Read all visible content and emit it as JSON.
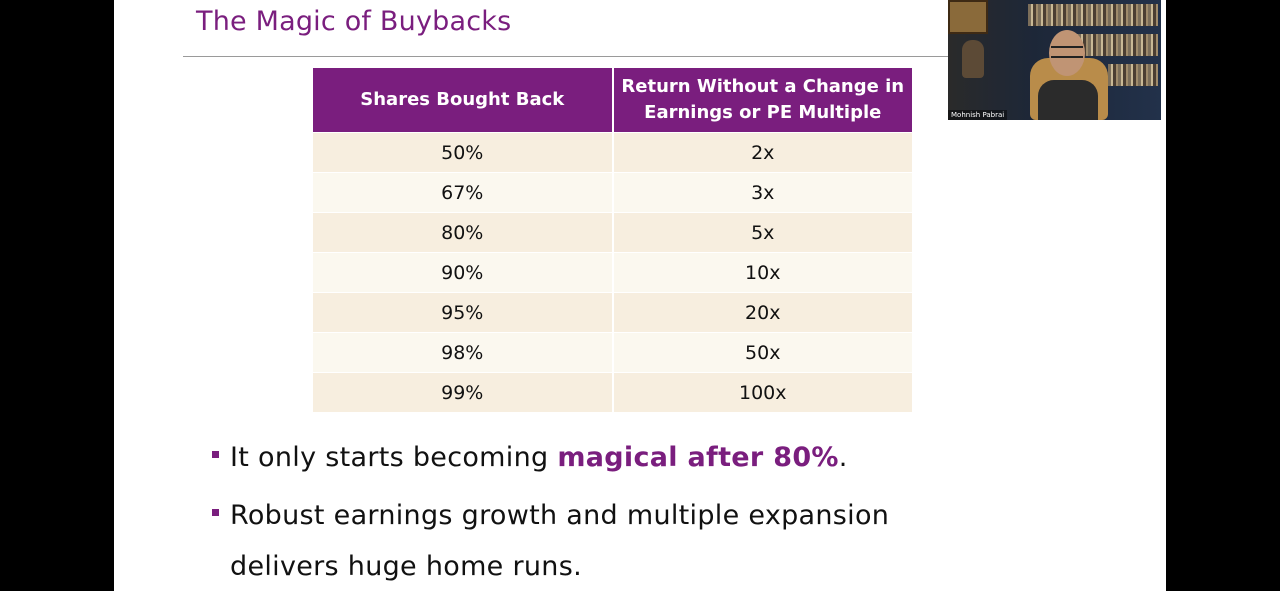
{
  "slide": {
    "title": "The Magic of Buybacks",
    "accent_color": "#7a1e7e"
  },
  "table": {
    "headers": [
      "Shares Bought Back",
      "Return Without a Change in Earnings or PE Multiple"
    ],
    "rows": [
      [
        "50%",
        "2x"
      ],
      [
        "67%",
        "3x"
      ],
      [
        "80%",
        "5x"
      ],
      [
        "90%",
        "10x"
      ],
      [
        "95%",
        "20x"
      ],
      [
        "98%",
        "50x"
      ],
      [
        "99%",
        "100x"
      ]
    ]
  },
  "bullets": {
    "first_prefix": "It only starts becoming ",
    "first_emphasis": "magical after 80%",
    "first_suffix": ".",
    "second": "Robust earnings growth and multiple expansion delivers huge home runs."
  },
  "webcam": {
    "participant_name": "Mohnish Pabrai"
  }
}
